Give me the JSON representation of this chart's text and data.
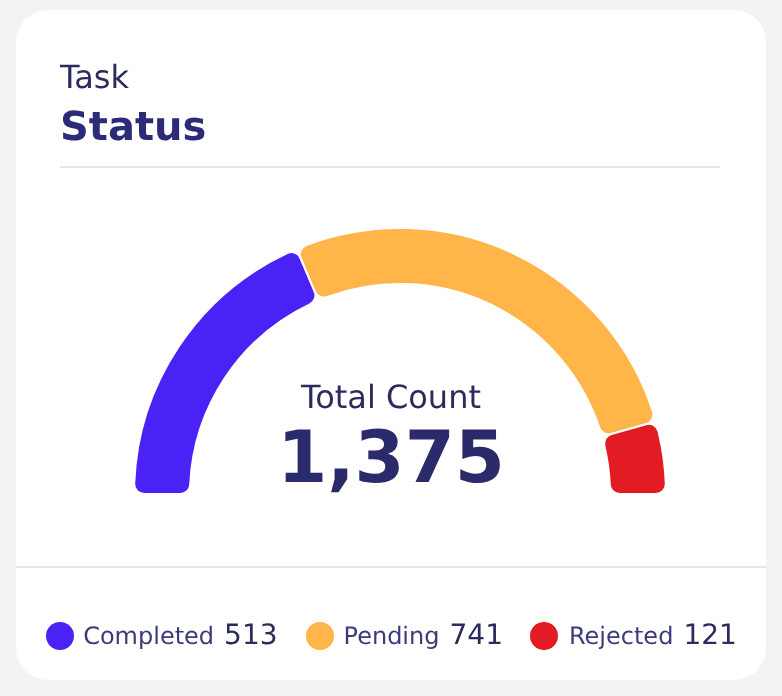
{
  "chart_data": {
    "type": "donut",
    "title": "Task",
    "subtitle": "Status",
    "categories": [
      "Completed",
      "Pending",
      "Rejected"
    ],
    "values": [
      513,
      741,
      121
    ],
    "colors": [
      "#4a22f5",
      "#ffb547",
      "#e31b23"
    ],
    "annotations": [
      "Total Count",
      "1,375"
    ],
    "data_labels": true,
    "legend": "bottom"
  }
}
